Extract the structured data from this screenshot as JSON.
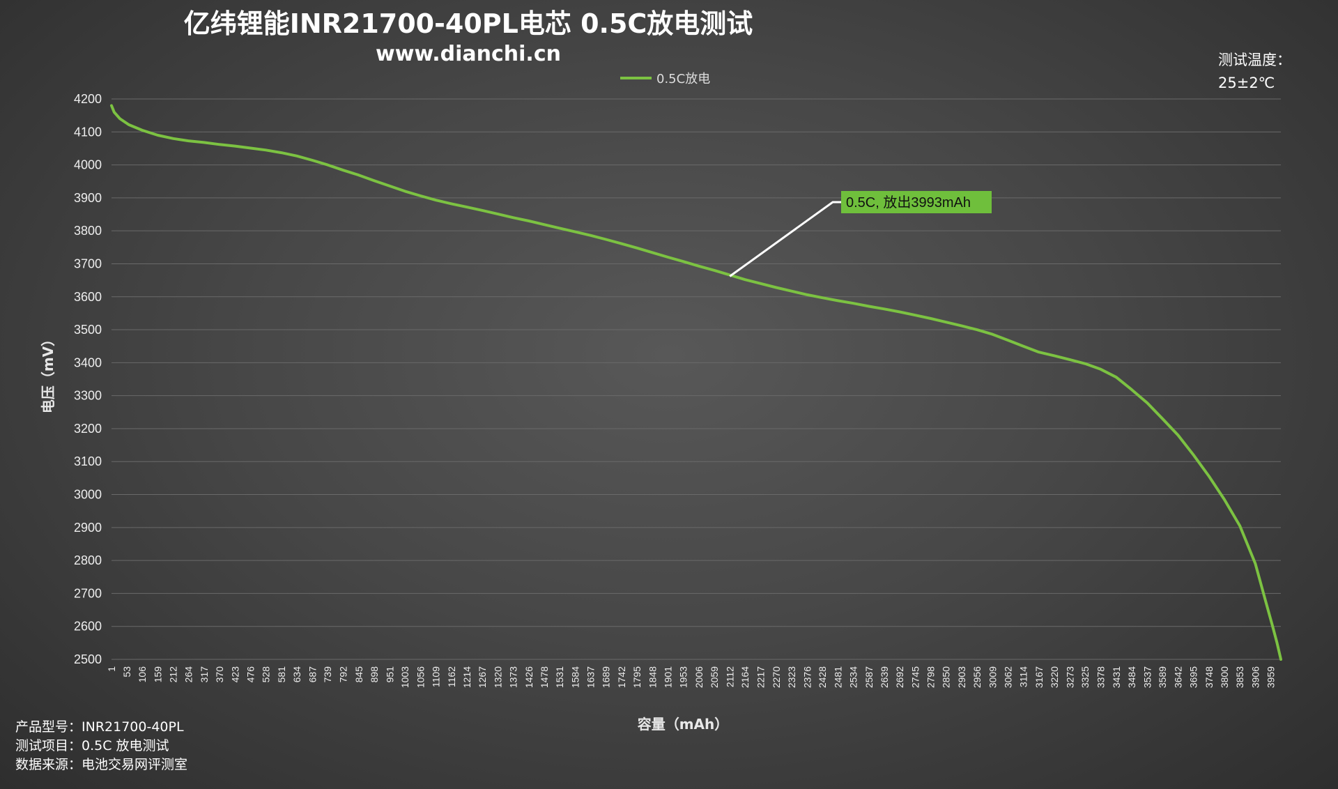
{
  "colors": {
    "series": "#7cc242",
    "grid": "#6a6a6a",
    "annotation_bg": "#6fbf3c",
    "leader": "#ffffff"
  },
  "info": {
    "temp_label": "测试温度：",
    "temp_value": "25±2℃",
    "model": "产品型号：INR21700-40PL",
    "test_item": "测试项目：0.5C 放电测试",
    "source": "数据来源：电池交易网评测室"
  },
  "annotation": {
    "text": "0.5C, 放出3993mAh",
    "x": 2112,
    "y": 3662
  },
  "chart_data": {
    "type": "line",
    "title": "亿纬锂能INR21700-40PL电芯 0.5C放电测试",
    "subtitle": "www.dianchi.cn",
    "xlabel": "容量（mAh）",
    "ylabel": "电压（mV）",
    "legend": "top-center",
    "grid": true,
    "xlim": [
      1,
      3993
    ],
    "ylim": [
      2500,
      4200
    ],
    "x_ticks": [
      "1",
      "53",
      "106",
      "159",
      "212",
      "264",
      "317",
      "370",
      "423",
      "476",
      "528",
      "581",
      "634",
      "687",
      "739",
      "792",
      "845",
      "898",
      "951",
      "1003",
      "1056",
      "1109",
      "1162",
      "1214",
      "1267",
      "1320",
      "1373",
      "1426",
      "1478",
      "1531",
      "1584",
      "1637",
      "1689",
      "1742",
      "1795",
      "1848",
      "1901",
      "1953",
      "2006",
      "2059",
      "2112",
      "2164",
      "2217",
      "2270",
      "2323",
      "2376",
      "2428",
      "2481",
      "2534",
      "2587",
      "2639",
      "2692",
      "2745",
      "2798",
      "2850",
      "2903",
      "2956",
      "3009",
      "3062",
      "3114",
      "3167",
      "3220",
      "3273",
      "3325",
      "3378",
      "3431",
      "3484",
      "3537",
      "3589",
      "3642",
      "3695",
      "3748",
      "3800",
      "3853",
      "3906",
      "3959"
    ],
    "y_ticks": [
      "4200",
      "4100",
      "4000",
      "3900",
      "3800",
      "3700",
      "3600",
      "3500",
      "3400",
      "3300",
      "3200",
      "3100",
      "3000",
      "2900",
      "2800",
      "2700",
      "2600",
      "2500"
    ],
    "series": [
      {
        "name": "0.5C放电",
        "x": [
          1,
          10,
          30,
          60,
          106,
          159,
          212,
          264,
          317,
          370,
          423,
          476,
          528,
          581,
          634,
          687,
          739,
          792,
          845,
          898,
          951,
          1003,
          1056,
          1109,
          1162,
          1214,
          1267,
          1320,
          1373,
          1426,
          1478,
          1531,
          1584,
          1637,
          1689,
          1742,
          1795,
          1848,
          1901,
          1953,
          2006,
          2059,
          2112,
          2164,
          2217,
          2270,
          2323,
          2376,
          2428,
          2481,
          2534,
          2587,
          2639,
          2692,
          2745,
          2798,
          2850,
          2903,
          2956,
          3009,
          3062,
          3114,
          3167,
          3220,
          3273,
          3325,
          3378,
          3431,
          3484,
          3537,
          3589,
          3642,
          3695,
          3748,
          3800,
          3853,
          3906,
          3940,
          3965,
          3980,
          3993
        ],
        "y": [
          4180,
          4160,
          4140,
          4122,
          4105,
          4090,
          4080,
          4073,
          4068,
          4062,
          4057,
          4051,
          4045,
          4037,
          4027,
          4014,
          4000,
          3984,
          3969,
          3952,
          3936,
          3920,
          3906,
          3893,
          3882,
          3872,
          3862,
          3851,
          3840,
          3830,
          3819,
          3808,
          3797,
          3786,
          3774,
          3761,
          3748,
          3734,
          3720,
          3707,
          3693,
          3680,
          3666,
          3652,
          3640,
          3628,
          3617,
          3606,
          3597,
          3588,
          3580,
          3571,
          3563,
          3554,
          3544,
          3534,
          3523,
          3512,
          3500,
          3486,
          3468,
          3450,
          3432,
          3421,
          3409,
          3397,
          3380,
          3356,
          3318,
          3278,
          3230,
          3180,
          3120,
          3055,
          2985,
          2905,
          2790,
          2680,
          2600,
          2550,
          2500
        ]
      }
    ]
  }
}
